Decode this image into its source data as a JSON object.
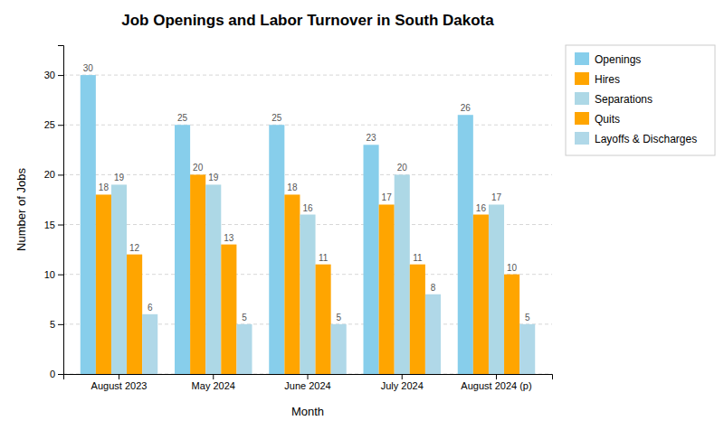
{
  "chart_data": {
    "type": "bar",
    "title": "Job Openings and Labor Turnover in South Dakota",
    "xlabel": "Month",
    "ylabel": "Number of Jobs",
    "categories": [
      "August 2023",
      "May 2024",
      "June 2024",
      "July 2024",
      "August 2024 (p)"
    ],
    "series": [
      {
        "name": "Openings",
        "color": "#87CEEB",
        "values": [
          30,
          25,
          25,
          23,
          26
        ]
      },
      {
        "name": "Hires",
        "color": "#FFA500",
        "values": [
          18,
          20,
          18,
          17,
          16
        ]
      },
      {
        "name": "Separations",
        "color": "#ADD8E6",
        "values": [
          19,
          19,
          16,
          20,
          17
        ]
      },
      {
        "name": "Quits",
        "color": "#FFA500",
        "values": [
          12,
          13,
          11,
          11,
          10
        ]
      },
      {
        "name": "Layoffs & Discharges",
        "color": "#B0D8E8",
        "values": [
          6,
          5,
          5,
          8,
          5
        ]
      }
    ],
    "ylim": [
      0,
      33
    ],
    "yticks": [
      0,
      5,
      10,
      15,
      20,
      25,
      30
    ],
    "grid": true,
    "legend": "upper right",
    "data_labels": true
  }
}
